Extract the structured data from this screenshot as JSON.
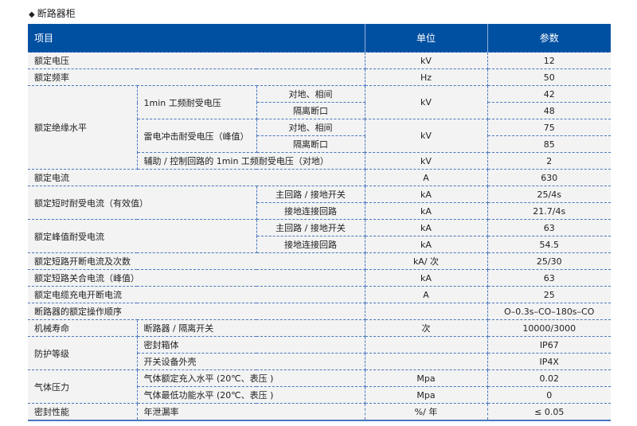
{
  "title": "断路器柜",
  "title_icon": "diamond-bullet-icon",
  "colors": {
    "header_bg": "#0050a2",
    "border": "#4a78c0",
    "row_bg": "#f3f3f3"
  },
  "header": {
    "item": "项目",
    "unit": "单位",
    "param": "参数"
  },
  "rows": [
    [
      {
        "t": "额定电压",
        "cs": 3,
        "a": "l"
      },
      {
        "t": "kV"
      },
      {
        "t": "12"
      }
    ],
    [
      {
        "t": "额定频率",
        "cs": 3,
        "a": "l"
      },
      {
        "t": "Hz"
      },
      {
        "t": "50"
      }
    ],
    [
      {
        "t": "额定绝缘水平",
        "rs": 5,
        "a": "l"
      },
      {
        "t": "1min 工频耐受电压",
        "rs": 2,
        "a": "l"
      },
      {
        "t": "对地、相间"
      },
      {
        "t": "kV",
        "rs": 2
      },
      {
        "t": "42"
      }
    ],
    [
      {
        "t": "隔离断口"
      },
      {
        "t": "48"
      }
    ],
    [
      {
        "t": "雷电冲击耐受电压（峰值）",
        "rs": 2,
        "a": "l"
      },
      {
        "t": "对地、相间"
      },
      {
        "t": "kV",
        "rs": 2
      },
      {
        "t": "75"
      }
    ],
    [
      {
        "t": "隔离断口"
      },
      {
        "t": "85"
      }
    ],
    [
      {
        "t": "辅助 / 控制回路的 1min 工频耐受电压（对地）",
        "cs": 2,
        "a": "l"
      },
      {
        "t": "kV"
      },
      {
        "t": "2"
      }
    ],
    [
      {
        "t": "额定电流",
        "cs": 3,
        "a": "l"
      },
      {
        "t": "A"
      },
      {
        "t": "630"
      }
    ],
    [
      {
        "t": "额定短时耐受电流（有效值）",
        "cs": 2,
        "rs": 2,
        "a": "l"
      },
      {
        "t": "主回路 / 接地开关"
      },
      {
        "t": "kA"
      },
      {
        "t": "25/4s"
      }
    ],
    [
      {
        "t": "接地连接回路"
      },
      {
        "t": "kA"
      },
      {
        "t": "21.7/4s"
      }
    ],
    [
      {
        "t": "额定峰值耐受电流",
        "cs": 2,
        "rs": 2,
        "a": "l"
      },
      {
        "t": "主回路 / 接地开关"
      },
      {
        "t": "kA"
      },
      {
        "t": "63"
      }
    ],
    [
      {
        "t": "接地连接回路"
      },
      {
        "t": "kA"
      },
      {
        "t": "54.5"
      }
    ],
    [
      {
        "t": "额定短路开断电流及次数",
        "cs": 3,
        "a": "l"
      },
      {
        "t": "kA/ 次"
      },
      {
        "t": "25/30"
      }
    ],
    [
      {
        "t": "额定短路关合电流（峰值）",
        "cs": 3,
        "a": "l"
      },
      {
        "t": "kA"
      },
      {
        "t": "63"
      }
    ],
    [
      {
        "t": "额定电缆充电开断电流",
        "cs": 3,
        "a": "l"
      },
      {
        "t": "A"
      },
      {
        "t": "25"
      }
    ],
    [
      {
        "t": "断路器的额定操作顺序",
        "cs": 3,
        "a": "l"
      },
      {
        "t": ""
      },
      {
        "t": "O–0.3s–CO–180s–CO"
      }
    ],
    [
      {
        "t": "机械寿命",
        "a": "l"
      },
      {
        "t": "断路器 / 隔离开关",
        "cs": 2,
        "a": "l"
      },
      {
        "t": "次"
      },
      {
        "t": "10000/3000"
      }
    ],
    [
      {
        "t": "防护等级",
        "rs": 2,
        "a": "l"
      },
      {
        "t": "密封箱体",
        "cs": 2,
        "a": "l"
      },
      {
        "t": ""
      },
      {
        "t": "IP67"
      }
    ],
    [
      {
        "t": "开关设备外壳",
        "cs": 2,
        "a": "l"
      },
      {
        "t": ""
      },
      {
        "t": "IP4X"
      }
    ],
    [
      {
        "t": "气体压力",
        "rs": 2,
        "a": "l"
      },
      {
        "t": "气体额定充入水平 (20℃、表压 )",
        "cs": 2,
        "a": "l"
      },
      {
        "t": "Mpa"
      },
      {
        "t": "0.02"
      }
    ],
    [
      {
        "t": "气体最低功能水平 (20℃、表压 )",
        "cs": 2,
        "a": "l"
      },
      {
        "t": "Mpa"
      },
      {
        "t": "0"
      }
    ],
    [
      {
        "t": "密封性能",
        "a": "l"
      },
      {
        "t": "年泄漏率",
        "cs": 2,
        "a": "l"
      },
      {
        "t": "%/ 年"
      },
      {
        "t": "≤ 0.05"
      }
    ]
  ]
}
